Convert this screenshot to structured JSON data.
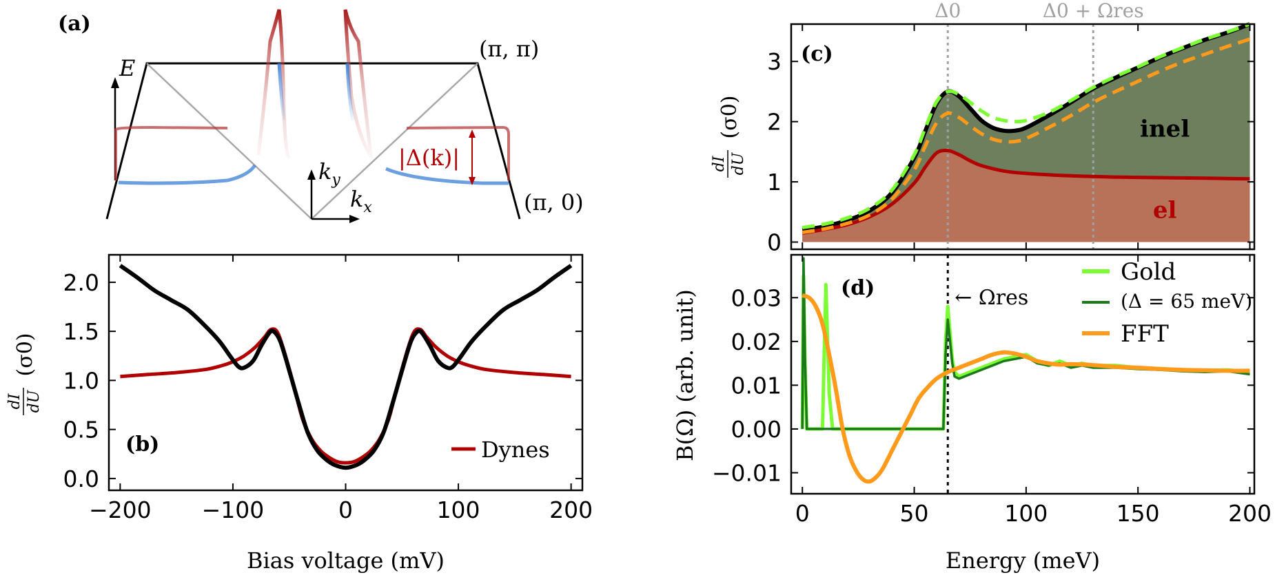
{
  "colors": {
    "black": "#000000",
    "dark_red": "#b00000",
    "light_green": "#7cfc32",
    "dark_green": "#1a7a1a",
    "orange": "#ff9a1a",
    "grey": "#a0a0a0",
    "fill_inel": "#6e7f5e",
    "fill_el": "#b8725a",
    "gap_blue": "#3a7fd5"
  },
  "panel_a": {
    "label": "(a)",
    "energy_label": "E",
    "corner_pi_pi": "(π, π)",
    "corner_pi_0": "(π, 0)",
    "kx_label": "k",
    "kx_sub": "x",
    "ky_label": "k",
    "ky_sub": "y",
    "gap_label": "|Δ(k)|"
  },
  "chart_data": [
    {
      "id": "b",
      "type": "line",
      "panel_label": "(b)",
      "xlabel": "Bias voltage (mV)",
      "ylabel_num": "dI",
      "ylabel_den": "dU",
      "ylabel_unit": "(σ0)",
      "xlim": [
        -210,
        210
      ],
      "ylim": [
        -0.12,
        2.28
      ],
      "xticks": [
        -200,
        -100,
        0,
        100,
        200
      ],
      "xtick_labels": [
        "−200",
        "−100",
        "0",
        "100",
        "200"
      ],
      "yticks": [
        0.0,
        0.5,
        1.0,
        1.5,
        2.0
      ],
      "ytick_labels": [
        "0.0",
        "0.5",
        "1.0",
        "1.5",
        "2.0"
      ],
      "legend": [
        {
          "name": "Dynes",
          "color": "#b00000"
        }
      ],
      "legend_position": "bottom-right",
      "series": [
        {
          "name": "Dynes",
          "color": "#b00000",
          "x": [
            -200,
            -175,
            -150,
            -125,
            -110,
            -100,
            -90,
            -80,
            -72,
            -66,
            -60,
            -52,
            -45,
            -38,
            -30,
            -22,
            -14,
            -7,
            0,
            7,
            14,
            22,
            30,
            38,
            45,
            52,
            60,
            66,
            72,
            80,
            90,
            100,
            110,
            125,
            150,
            175,
            200
          ],
          "y": [
            1.04,
            1.06,
            1.08,
            1.11,
            1.15,
            1.19,
            1.25,
            1.34,
            1.44,
            1.52,
            1.48,
            1.2,
            0.9,
            0.6,
            0.4,
            0.28,
            0.21,
            0.17,
            0.16,
            0.17,
            0.21,
            0.28,
            0.4,
            0.6,
            0.9,
            1.2,
            1.48,
            1.52,
            1.44,
            1.34,
            1.25,
            1.19,
            1.15,
            1.11,
            1.08,
            1.06,
            1.04
          ]
        },
        {
          "name": "data",
          "color": "#000000",
          "x": [
            -200,
            -185,
            -170,
            -155,
            -140,
            -125,
            -112,
            -102,
            -95,
            -90,
            -82,
            -75,
            -68,
            -64,
            -58,
            -50,
            -42,
            -34,
            -26,
            -18,
            -10,
            0,
            10,
            18,
            26,
            34,
            42,
            50,
            58,
            64,
            68,
            75,
            82,
            90,
            95,
            102,
            112,
            125,
            140,
            155,
            170,
            185,
            200
          ],
          "y": [
            2.17,
            2.05,
            1.92,
            1.82,
            1.72,
            1.56,
            1.4,
            1.24,
            1.14,
            1.13,
            1.2,
            1.35,
            1.48,
            1.5,
            1.4,
            1.1,
            0.78,
            0.48,
            0.3,
            0.2,
            0.14,
            0.11,
            0.14,
            0.2,
            0.3,
            0.48,
            0.78,
            1.1,
            1.4,
            1.5,
            1.48,
            1.35,
            1.2,
            1.13,
            1.14,
            1.24,
            1.4,
            1.56,
            1.72,
            1.82,
            1.92,
            2.05,
            2.17
          ]
        }
      ]
    },
    {
      "id": "c",
      "type": "area",
      "panel_label": "(c)",
      "xlim": [
        -5,
        202
      ],
      "ylim": [
        -0.12,
        3.62
      ],
      "yticks": [
        0,
        1,
        2,
        3
      ],
      "ytick_labels": [
        "0",
        "1",
        "2",
        "3"
      ],
      "ylabel_num": "dI",
      "ylabel_den": "dU",
      "ylabel_unit": "(σ0)",
      "annotations": [
        {
          "text": "inel",
          "color": "#000000",
          "x": 162,
          "y": 1.75
        },
        {
          "text": "el",
          "color": "#b00000",
          "x": 162,
          "y": 0.4
        }
      ],
      "top_markers": [
        {
          "text": "Δ0",
          "x": 65
        },
        {
          "text": "Δ0 + Ωres",
          "x": 130
        }
      ],
      "series": [
        {
          "name": "total",
          "color": "#000000",
          "x": [
            0,
            10,
            20,
            30,
            40,
            50,
            55,
            60,
            65,
            70,
            75,
            80,
            85,
            90,
            95,
            100,
            110,
            120,
            130,
            140,
            150,
            160,
            170,
            180,
            190,
            200
          ],
          "y": [
            0.2,
            0.26,
            0.36,
            0.52,
            0.82,
            1.4,
            1.85,
            2.3,
            2.5,
            2.42,
            2.22,
            2.02,
            1.9,
            1.85,
            1.85,
            1.9,
            2.1,
            2.32,
            2.55,
            2.73,
            2.9,
            3.07,
            3.22,
            3.36,
            3.48,
            3.62
          ]
        },
        {
          "name": "fit",
          "color": "#7cfc32",
          "style": "dashed",
          "x": [
            0,
            10,
            20,
            30,
            40,
            50,
            55,
            60,
            65,
            70,
            75,
            80,
            85,
            90,
            95,
            100,
            110,
            120,
            130,
            140,
            150,
            160,
            170,
            180,
            190,
            200
          ],
          "y": [
            0.24,
            0.3,
            0.4,
            0.56,
            0.86,
            1.45,
            1.9,
            2.33,
            2.5,
            2.45,
            2.32,
            2.18,
            2.07,
            2.02,
            2.0,
            2.02,
            2.15,
            2.35,
            2.57,
            2.75,
            2.91,
            3.08,
            3.23,
            3.37,
            3.49,
            3.62
          ]
        },
        {
          "name": "inel",
          "color": "#ff9a1a",
          "style": "dashed",
          "x": [
            0,
            10,
            20,
            30,
            40,
            50,
            55,
            60,
            65,
            70,
            75,
            80,
            85,
            90,
            95,
            100,
            110,
            120,
            130,
            140,
            150,
            160,
            170,
            180,
            190,
            200
          ],
          "y": [
            0.16,
            0.22,
            0.31,
            0.45,
            0.71,
            1.2,
            1.6,
            1.98,
            2.14,
            2.07,
            1.93,
            1.8,
            1.71,
            1.67,
            1.67,
            1.72,
            1.9,
            2.1,
            2.32,
            2.5,
            2.67,
            2.84,
            2.99,
            3.12,
            3.25,
            3.37
          ]
        },
        {
          "name": "el",
          "color": "#b00000",
          "x": [
            0,
            10,
            20,
            30,
            40,
            50,
            55,
            60,
            65,
            70,
            75,
            80,
            90,
            100,
            120,
            140,
            160,
            180,
            200
          ],
          "y": [
            0.15,
            0.21,
            0.29,
            0.42,
            0.63,
            0.98,
            1.25,
            1.48,
            1.52,
            1.45,
            1.35,
            1.27,
            1.18,
            1.14,
            1.1,
            1.08,
            1.07,
            1.06,
            1.05
          ]
        }
      ]
    },
    {
      "id": "d",
      "type": "line",
      "panel_label": "(d)",
      "xlabel": "Energy (meV)",
      "ylabel": "B(Ω) (arb. unit)",
      "xlim": [
        -5,
        202
      ],
      "ylim": [
        -0.0148,
        0.0398
      ],
      "xticks": [
        0,
        50,
        100,
        150,
        200
      ],
      "xtick_labels": [
        "0",
        "50",
        "100",
        "150",
        "200"
      ],
      "yticks": [
        -0.01,
        0.0,
        0.01,
        0.02,
        0.03
      ],
      "ytick_labels": [
        "−0.01",
        "0.00",
        "0.01",
        "0.02",
        "0.03"
      ],
      "vline_x": 65,
      "vline_label": "← Ωres",
      "legend": [
        {
          "name": "Gold",
          "color": "#7cfc32"
        },
        {
          "name": "(Δ = 65 meV)",
          "color": "#1a7a1a"
        },
        {
          "name": "FFT",
          "color": "#ff9a1a"
        }
      ],
      "legend_position": "top-right",
      "series": [
        {
          "name": "Gold",
          "color": "#7cfc32",
          "x": [
            0,
            0.5,
            1.2,
            2,
            9,
            10.5,
            12,
            13.5,
            63,
            64,
            65,
            66,
            67,
            68,
            70,
            75,
            80,
            85,
            90,
            95,
            100,
            105,
            110,
            115,
            120,
            125,
            130,
            140,
            150,
            160,
            170,
            180,
            190,
            200
          ],
          "y": [
            0.0,
            0.035,
            0.015,
            0.0,
            0.0,
            0.033,
            0.008,
            0.0,
            0.0,
            0.02,
            0.028,
            0.022,
            0.016,
            0.013,
            0.012,
            0.013,
            0.014,
            0.015,
            0.016,
            0.0165,
            0.017,
            0.0155,
            0.0145,
            0.0155,
            0.0145,
            0.015,
            0.0145,
            0.0145,
            0.014,
            0.0138,
            0.0135,
            0.0133,
            0.0135,
            0.013
          ]
        },
        {
          "name": "(Δ = 65 meV)",
          "color": "#1a7a1a",
          "x": [
            0,
            0.5,
            1.2,
            2,
            63,
            64,
            65,
            66,
            67,
            68,
            70,
            75,
            80,
            85,
            90,
            95,
            100,
            105,
            110,
            115,
            120,
            125,
            130,
            140,
            150,
            160,
            170,
            180,
            190,
            200
          ],
          "y": [
            0.0,
            0.039,
            0.016,
            0.0,
            0.0,
            0.017,
            0.025,
            0.02,
            0.015,
            0.012,
            0.0115,
            0.0125,
            0.0135,
            0.0145,
            0.0155,
            0.016,
            0.0165,
            0.015,
            0.0145,
            0.015,
            0.014,
            0.0145,
            0.014,
            0.014,
            0.0137,
            0.0135,
            0.0132,
            0.013,
            0.0132,
            0.0125
          ]
        },
        {
          "name": "FFT",
          "color": "#ff9a1a",
          "x": [
            0,
            3,
            6,
            9,
            12,
            15,
            18,
            21,
            24,
            27,
            30,
            33,
            36,
            40,
            44,
            48,
            52,
            56,
            60,
            65,
            70,
            75,
            80,
            85,
            90,
            95,
            100,
            105,
            110,
            115,
            120,
            130,
            140,
            150,
            160,
            170,
            180,
            190,
            200
          ],
          "y": [
            0.0305,
            0.03,
            0.028,
            0.024,
            0.017,
            0.009,
            0.0,
            -0.006,
            -0.0095,
            -0.0115,
            -0.012,
            -0.011,
            -0.009,
            -0.005,
            -0.001,
            0.003,
            0.007,
            0.0095,
            0.0115,
            0.013,
            0.014,
            0.015,
            0.016,
            0.017,
            0.0175,
            0.0172,
            0.0165,
            0.0155,
            0.015,
            0.0147,
            0.0148,
            0.0146,
            0.0142,
            0.014,
            0.0137,
            0.0135,
            0.0134,
            0.0133,
            0.0133
          ]
        }
      ]
    }
  ]
}
